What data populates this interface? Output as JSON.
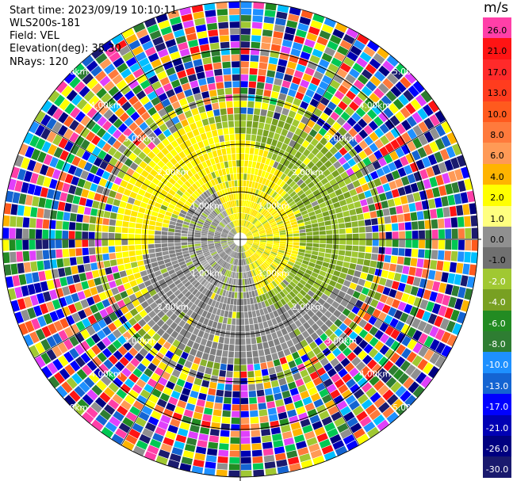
{
  "header": {
    "start_time": "Start time: 2023/09/19 10:10:11",
    "instrument": "WLS200s-181",
    "field": "Field: VEL",
    "elevation": "Elevation(deg): 35.30",
    "nrays": "NRays: 120"
  },
  "colorbar": {
    "unit": "m/s",
    "ticks": [
      "26.0",
      "21.0",
      "17.0",
      "13.0",
      "10.0",
      "8.0",
      "6.0",
      "4.0",
      "2.0",
      "1.0",
      "0.0",
      "-1.0",
      "-2.0",
      "-4.0",
      "-6.0",
      "-8.0",
      "-10.0",
      "-13.0",
      "-17.0",
      "-21.0",
      "-26.0",
      "-30.0"
    ],
    "colors": [
      "#ff3fa8",
      "#ff1414",
      "#ff2a2a",
      "#ff3c1e",
      "#ff5a1e",
      "#ff7a3c",
      "#ff9a56",
      "#ffb400",
      "#ffff00",
      "#ffff80",
      "#909090",
      "#707070",
      "#a0c832",
      "#78a022",
      "#228b22",
      "#2e7d32",
      "#1e90ff",
      "#1464d2",
      "#0000ff",
      "#0000b4",
      "#000080",
      "#1a1a6e"
    ]
  },
  "chart_data": {
    "type": "heatmap",
    "title": "",
    "field": "VEL",
    "units": "m/s",
    "nrays": 120,
    "elevation_deg": 35.3,
    "range_ring_labels": [
      "1.00km",
      "2.00km",
      "3.00km",
      "4.00km",
      "5.00km"
    ],
    "spoke_angles_deg": [
      0,
      30,
      60,
      90,
      120,
      150,
      180,
      210,
      240,
      270,
      300,
      330
    ],
    "color_scale": {
      "min": -30.0,
      "max": 26.0,
      "tick_values": [
        26.0,
        21.0,
        17.0,
        13.0,
        10.0,
        8.0,
        6.0,
        4.0,
        2.0,
        1.0,
        0.0,
        -1.0,
        -2.0,
        -4.0,
        -6.0,
        -8.0,
        -10.0,
        -13.0,
        -17.0,
        -21.0,
        -26.0,
        -30.0
      ]
    },
    "regions": [
      {
        "description": "near range",
        "values_m_s": [
          -1.0,
          0.0,
          1.0,
          2.0
        ]
      },
      {
        "description": "mid range",
        "values_m_s": [
          -2.0,
          -1.0,
          0.0,
          2.0,
          4.0
        ]
      },
      {
        "description": "far range",
        "values_m_s": [
          -30.0,
          26.0
        ]
      }
    ]
  }
}
